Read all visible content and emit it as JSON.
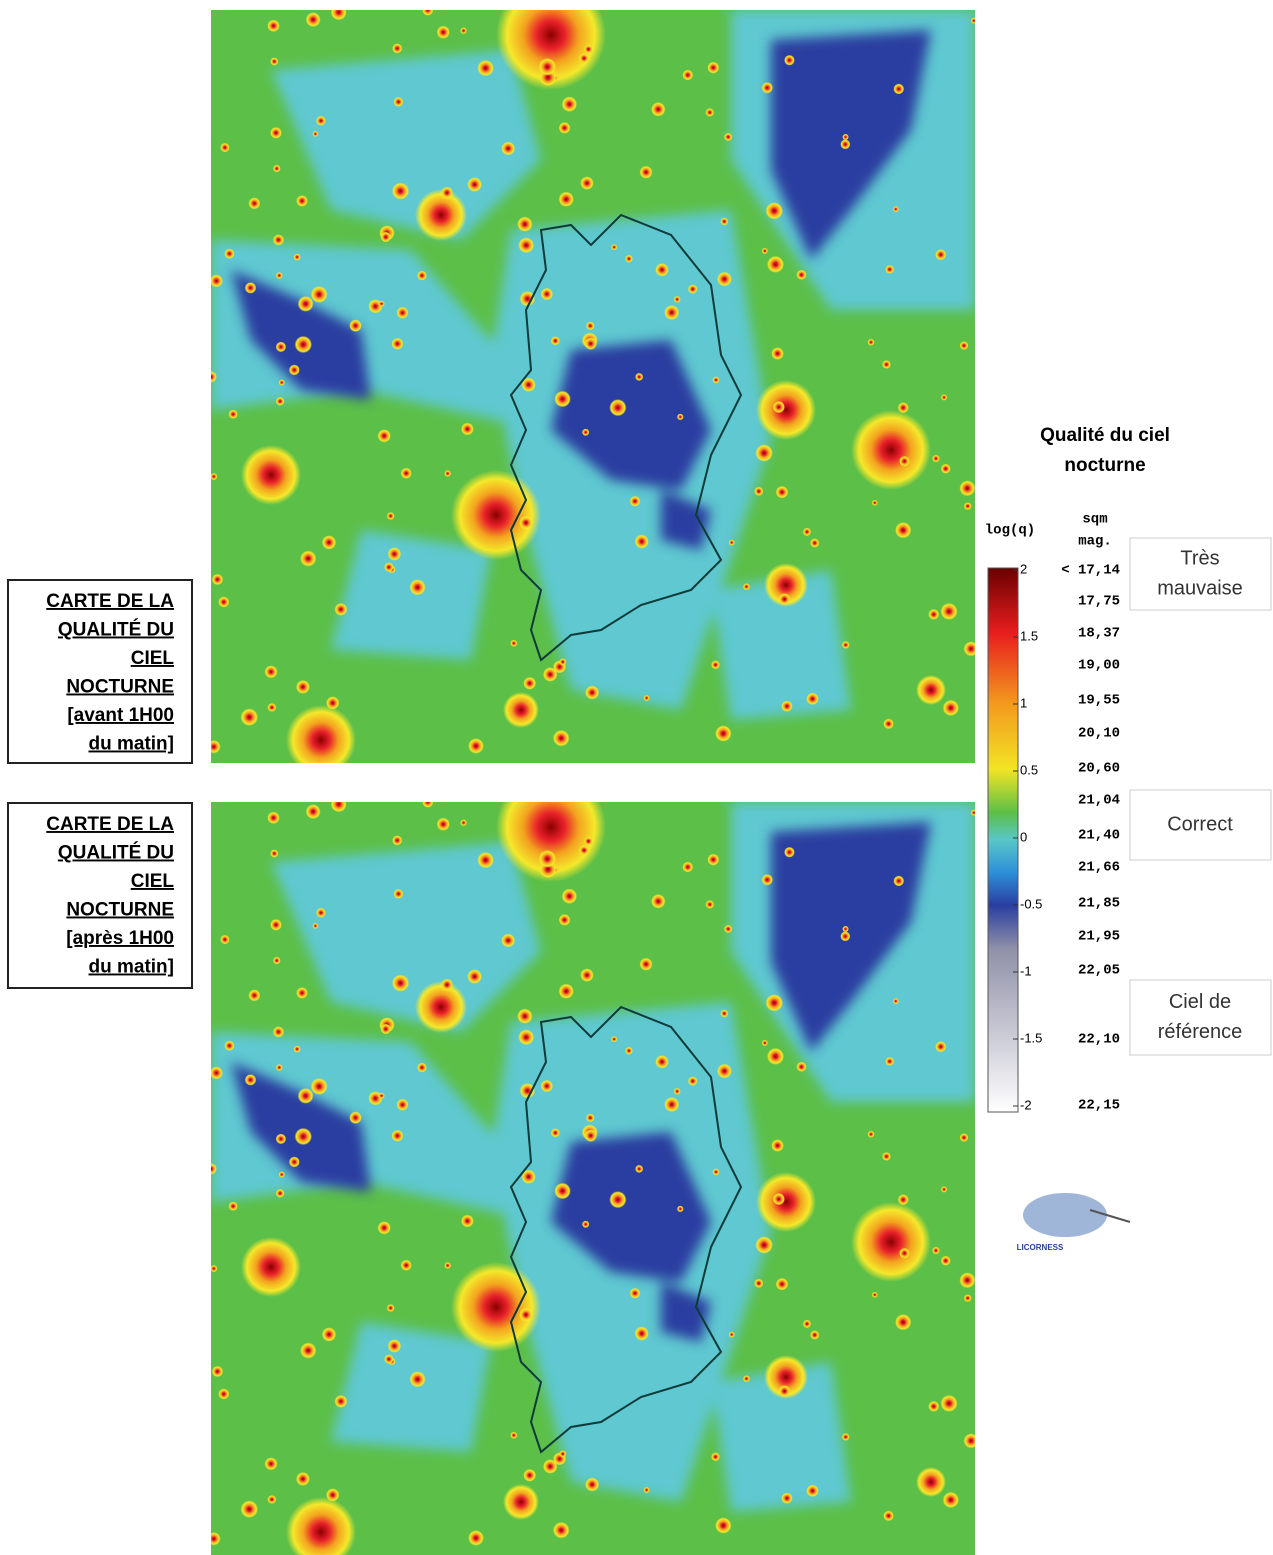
{
  "panels": [
    {
      "label_lines": [
        "CARTE  DE LA",
        "QUALITÉ  DU",
        "CIEL",
        "NOCTURNE",
        "[avant 1H00",
        "du matin]"
      ]
    },
    {
      "label_lines": [
        "CARTE  DE LA",
        "QUALITÉ  DU",
        "CIEL",
        "NOCTURNE",
        "[après 1H00",
        "du matin]"
      ]
    }
  ],
  "legend": {
    "title_lines": [
      "Qualité du ciel",
      "nocturne"
    ],
    "log_header": "log(q)",
    "sqm_header_lines": [
      "sqm",
      "mag."
    ],
    "log_ticks": [
      "2",
      "1.5",
      "1",
      "0.5",
      "0",
      "-0.5",
      "-1",
      "-1.5",
      "-2"
    ],
    "sqm_values": [
      "< 17,14",
      "17,75",
      "18,37",
      "19,00",
      "19,55",
      "20,10",
      "20,60",
      "21,04",
      "21,40",
      "21,66",
      "21,85",
      "21,95",
      "22,05",
      "22,10",
      "22,15"
    ],
    "categories": [
      {
        "lines": [
          "Très",
          "mauvaise"
        ]
      },
      {
        "lines": [
          "Correct"
        ]
      },
      {
        "lines": [
          "Ciel de",
          "référence"
        ]
      }
    ]
  },
  "logo": {
    "text": "LICORNESS"
  }
}
